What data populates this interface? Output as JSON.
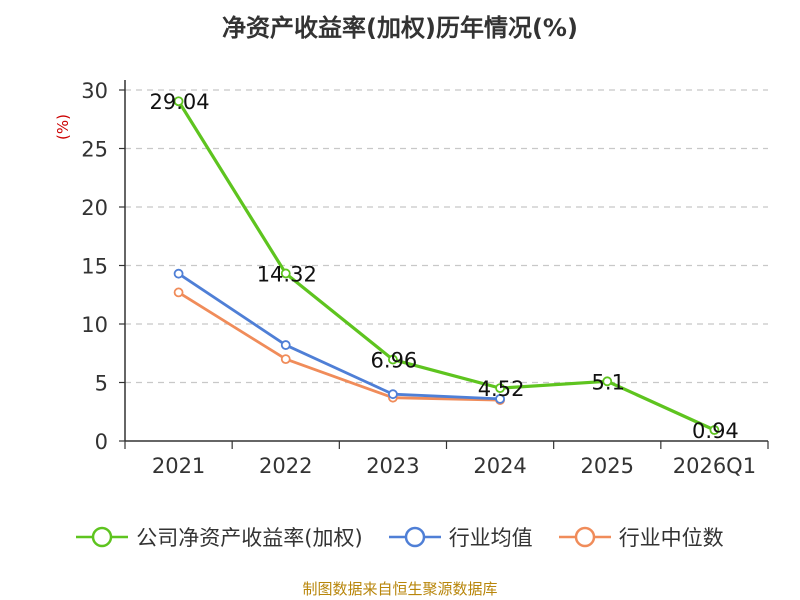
{
  "chart_data": {
    "type": "line",
    "title": "净资产收益率(加权)历年情况(%)",
    "ylabel": "(%)",
    "xlabel": "",
    "ylim": [
      0,
      30
    ],
    "yticks": [
      0,
      5,
      10,
      15,
      20,
      25,
      30
    ],
    "categories": [
      "2021",
      "2022",
      "2023",
      "2024",
      "2025",
      "2026Q1"
    ],
    "series": [
      {
        "name": "公司净资产收益率(加权)",
        "color": "#5ec41f",
        "values": [
          29.04,
          14.32,
          6.96,
          4.52,
          5.1,
          0.94
        ],
        "labels": [
          "29.04",
          "14.32",
          "6.96",
          "4.52",
          "5.1",
          "0.94"
        ]
      },
      {
        "name": "行业均值",
        "color": "#4f7fd6",
        "values": [
          14.3,
          8.2,
          4.0,
          3.6,
          null,
          null
        ]
      },
      {
        "name": "行业中位数",
        "color": "#f08c5a",
        "values": [
          12.7,
          7.0,
          3.7,
          3.5,
          null,
          null
        ]
      }
    ],
    "grid": true,
    "legend": "bottom"
  },
  "source": "制图数据来自恒生聚源数据库"
}
